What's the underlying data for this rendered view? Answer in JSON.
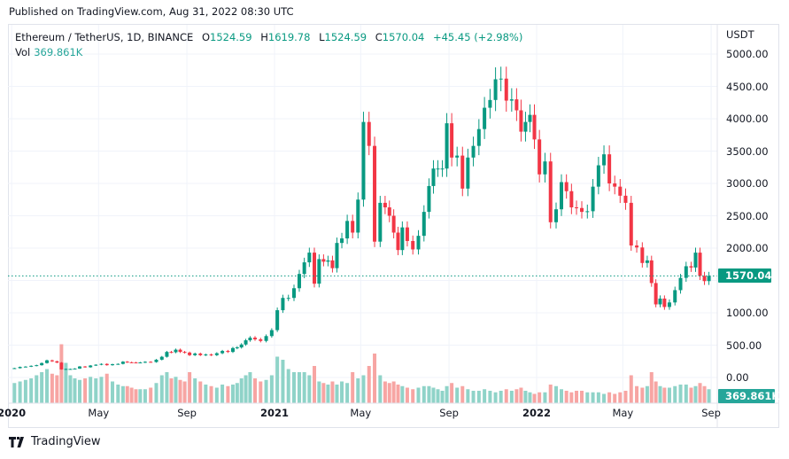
{
  "published": "Published on TradingView.com, Aug 31, 2022 08:30 UTC",
  "legend": {
    "symbol": "Ethereum / TetherUS, 1D, BINANCE",
    "open_label": "O",
    "open": "1524.59",
    "high_label": "H",
    "high": "1619.78",
    "low_label": "L",
    "low": "1524.59",
    "close_label": "C",
    "close": "1570.04",
    "change": "+45.45 (+2.98%)",
    "vol_label": "Vol",
    "vol_value": "369.861K"
  },
  "brand": "TradingView",
  "colors": {
    "up": "#089981",
    "down": "#f23645",
    "vol_up": "#8fd3c8",
    "vol_down": "#f7a5a3",
    "last_price": "#089981",
    "last_vol": "#26a69a"
  },
  "chart_data": {
    "type": "candlestick",
    "title": "Ethereum / TetherUS, 1D, BINANCE",
    "currency_label": "USDT",
    "ylim": [
      0,
      5000
    ],
    "y_ticks": [
      "5000.00",
      "4500.00",
      "4000.00",
      "3500.00",
      "3000.00",
      "2500.00",
      "2000.00",
      "1000.00",
      "500.00",
      "0.00"
    ],
    "x_ticks": [
      {
        "label": "2020",
        "date": "2020-01-01",
        "year": true
      },
      {
        "label": "May",
        "date": "2020-05-01"
      },
      {
        "label": "Sep",
        "date": "2020-09-01"
      },
      {
        "label": "2021",
        "date": "2021-01-01",
        "year": true
      },
      {
        "label": "May",
        "date": "2021-05-01"
      },
      {
        "label": "Sep",
        "date": "2021-09-01"
      },
      {
        "label": "2022",
        "date": "2022-01-01",
        "year": true
      },
      {
        "label": "May",
        "date": "2022-05-01"
      },
      {
        "label": "Sep",
        "date": "2022-09-01"
      }
    ],
    "last_price": "1570.04",
    "last_volume": "369.861K",
    "grid": true,
    "note_resolution": "weekly closes and average daily volume (K) per month",
    "months": {
      "2020-01": {
        "c": [
          144,
          163,
          168,
          180
        ],
        "v": [
          650,
          700,
          750,
          800
        ]
      },
      "2020-02": {
        "c": [
          190,
          223,
          265,
          250
        ],
        "v": [
          900,
          1000,
          1100,
          950
        ]
      },
      "2020-03": {
        "c": [
          230,
          125,
          132,
          132,
          138
        ],
        "v": [
          900,
          1900,
          1300,
          900,
          800
        ]
      },
      "2020-04": {
        "c": [
          170,
          158,
          185,
          197
        ],
        "v": [
          750,
          800,
          850,
          800
        ]
      },
      "2020-05": {
        "c": [
          210,
          190,
          205,
          210
        ],
        "v": [
          850,
          950,
          700,
          600
        ]
      },
      "2020-06": {
        "c": [
          244,
          235,
          232,
          228,
          232
        ],
        "v": [
          550,
          550,
          500,
          450,
          450
        ]
      },
      "2020-07": {
        "c": [
          242,
          238,
          275,
          320
        ],
        "v": [
          450,
          500,
          650,
          900
        ]
      },
      "2020-08": {
        "c": [
          395,
          390,
          430,
          395,
          385
        ],
        "v": [
          1000,
          800,
          850,
          750,
          700
        ]
      },
      "2020-09": {
        "c": [
          345,
          370,
          345,
          355
        ],
        "v": [
          1000,
          800,
          700,
          600
        ]
      },
      "2020-10": {
        "c": [
          345,
          375,
          410,
          395
        ],
        "v": [
          550,
          500,
          600,
          550
        ]
      },
      "2020-11": {
        "c": [
          455,
          465,
          510,
          575,
          615
        ],
        "v": [
          600,
          650,
          800,
          900,
          1000
        ]
      },
      "2020-12": {
        "c": [
          590,
          565,
          640,
          732
        ],
        "v": [
          800,
          700,
          750,
          900
        ]
      },
      "2021-01": {
        "c": [
          1040,
          1230,
          1230,
          1380
        ],
        "v": [
          1500,
          1400,
          1100,
          1000
        ]
      },
      "2021-02": {
        "c": [
          1600,
          1780,
          1930,
          1450
        ],
        "v": [
          1000,
          1000,
          900,
          1200
        ]
      },
      "2021-03": {
        "c": [
          1830,
          1790,
          1810,
          1690,
          2080
        ],
        "v": [
          700,
          650,
          600,
          700,
          600
        ]
      },
      "2021-04": {
        "c": [
          2150,
          2420,
          2240,
          2750
        ],
        "v": [
          700,
          650,
          1000,
          800
        ]
      },
      "2021-05": {
        "c": [
          3950,
          3580,
          2100,
          2700
        ],
        "v": [
          900,
          1200,
          1600,
          900
        ]
      },
      "2021-06": {
        "c": [
          2630,
          2500,
          2240,
          1970,
          2320
        ],
        "v": [
          700,
          650,
          700,
          600,
          550
        ]
      },
      "2021-07": {
        "c": [
          2110,
          1980,
          2190,
          2560
        ],
        "v": [
          500,
          450,
          500,
          550
        ]
      },
      "2021-08": {
        "c": [
          2960,
          3230,
          3230,
          3230,
          3930
        ],
        "v": [
          550,
          500,
          450,
          400,
          550
        ]
      },
      "2021-09": {
        "c": [
          3400,
          3430,
          2920,
          3400
        ],
        "v": [
          650,
          500,
          550,
          450
        ]
      },
      "2021-10": {
        "c": [
          3580,
          3840,
          4170,
          4290
        ],
        "v": [
          400,
          400,
          450,
          400
        ]
      },
      "2021-11": {
        "c": [
          4610,
          4620,
          4280,
          4300
        ],
        "v": [
          350,
          400,
          450,
          400
        ]
      },
      "2021-12": {
        "c": [
          4130,
          3800,
          3950,
          4060,
          3680
        ],
        "v": [
          450,
          500,
          400,
          350,
          300
        ]
      },
      "2022-01": {
        "c": [
          3140,
          3340,
          2400,
          2600
        ],
        "v": [
          350,
          350,
          600,
          550
        ]
      },
      "2022-02": {
        "c": [
          3020,
          2880,
          2630,
          2620
        ],
        "v": [
          450,
          400,
          350,
          400
        ]
      },
      "2022-03": {
        "c": [
          2560,
          2570,
          2950,
          3280
        ],
        "v": [
          400,
          350,
          350,
          350
        ]
      },
      "2022-04": {
        "c": [
          3450,
          3000,
          2950,
          2810
        ],
        "v": [
          300,
          350,
          300,
          350
        ]
      },
      "2022-05": {
        "c": [
          2700,
          2040,
          2010,
          1770
        ],
        "v": [
          400,
          900,
          550,
          500
        ]
      },
      "2022-06": {
        "c": [
          1810,
          1460,
          1130,
          1220,
          1090
        ],
        "v": [
          550,
          1000,
          700,
          550,
          500
        ]
      },
      "2022-07": {
        "c": [
          1160,
          1350,
          1540,
          1720
        ],
        "v": [
          500,
          550,
          600,
          600
        ]
      },
      "2022-08": {
        "c": [
          1700,
          1930,
          1570,
          1490,
          1570
        ],
        "v": [
          500,
          550,
          650,
          550,
          450
        ]
      }
    }
  }
}
